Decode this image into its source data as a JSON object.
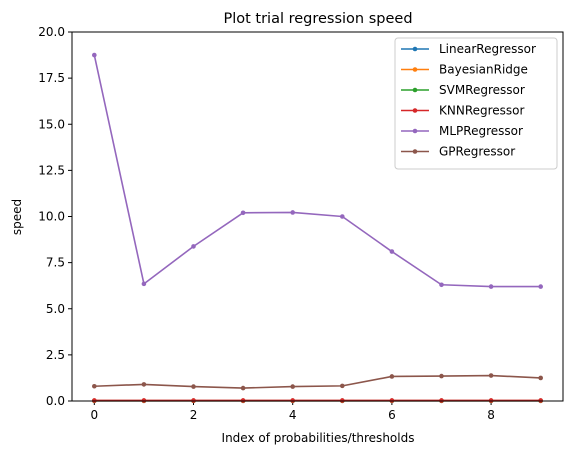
{
  "chart_data": {
    "type": "line",
    "title": "Plot trial regression speed",
    "xlabel": "Index of probabilities/thresholds",
    "ylabel": "speed",
    "xlim": [
      -0.45,
      9.45
    ],
    "ylim": [
      0,
      20
    ],
    "xticks": [
      0,
      2,
      4,
      6,
      8
    ],
    "xtick_labels": [
      "0",
      "2",
      "4",
      "6",
      "8"
    ],
    "yticks": [
      0,
      2.5,
      5,
      7.5,
      10,
      12.5,
      15,
      17.5,
      20
    ],
    "ytick_labels": [
      "0.0",
      "2.5",
      "5.0",
      "7.5",
      "10.0",
      "12.5",
      "15.0",
      "17.5",
      "20.0"
    ],
    "legend_position": "top-right",
    "grid": false,
    "x": [
      0,
      1,
      2,
      3,
      4,
      5,
      6,
      7,
      8,
      9
    ],
    "series": [
      {
        "name": "LinearRegressor",
        "color": "#1f77b4",
        "values": [
          0.01,
          0.01,
          0.01,
          0.01,
          0.01,
          0.01,
          0.01,
          0.01,
          0.01,
          0.01
        ]
      },
      {
        "name": "BayesianRidge",
        "color": "#ff7f0e",
        "values": [
          0.01,
          0.01,
          0.01,
          0.01,
          0.01,
          0.01,
          0.01,
          0.01,
          0.01,
          0.01
        ]
      },
      {
        "name": "SVMRegressor",
        "color": "#2ca02c",
        "values": [
          0.02,
          0.02,
          0.02,
          0.02,
          0.02,
          0.02,
          0.02,
          0.02,
          0.02,
          0.02
        ]
      },
      {
        "name": "KNNRegressor",
        "color": "#d62728",
        "values": [
          0.03,
          0.03,
          0.03,
          0.03,
          0.03,
          0.03,
          0.03,
          0.03,
          0.03,
          0.03
        ]
      },
      {
        "name": "MLPRegressor",
        "color": "#9467bd",
        "values": [
          18.75,
          6.35,
          8.38,
          10.2,
          10.22,
          10.0,
          8.1,
          6.3,
          6.2,
          6.2
        ]
      },
      {
        "name": "GPRegressor",
        "color": "#8c564b",
        "values": [
          0.8,
          0.9,
          0.78,
          0.7,
          0.78,
          0.82,
          1.33,
          1.35,
          1.38,
          1.25
        ]
      }
    ]
  }
}
